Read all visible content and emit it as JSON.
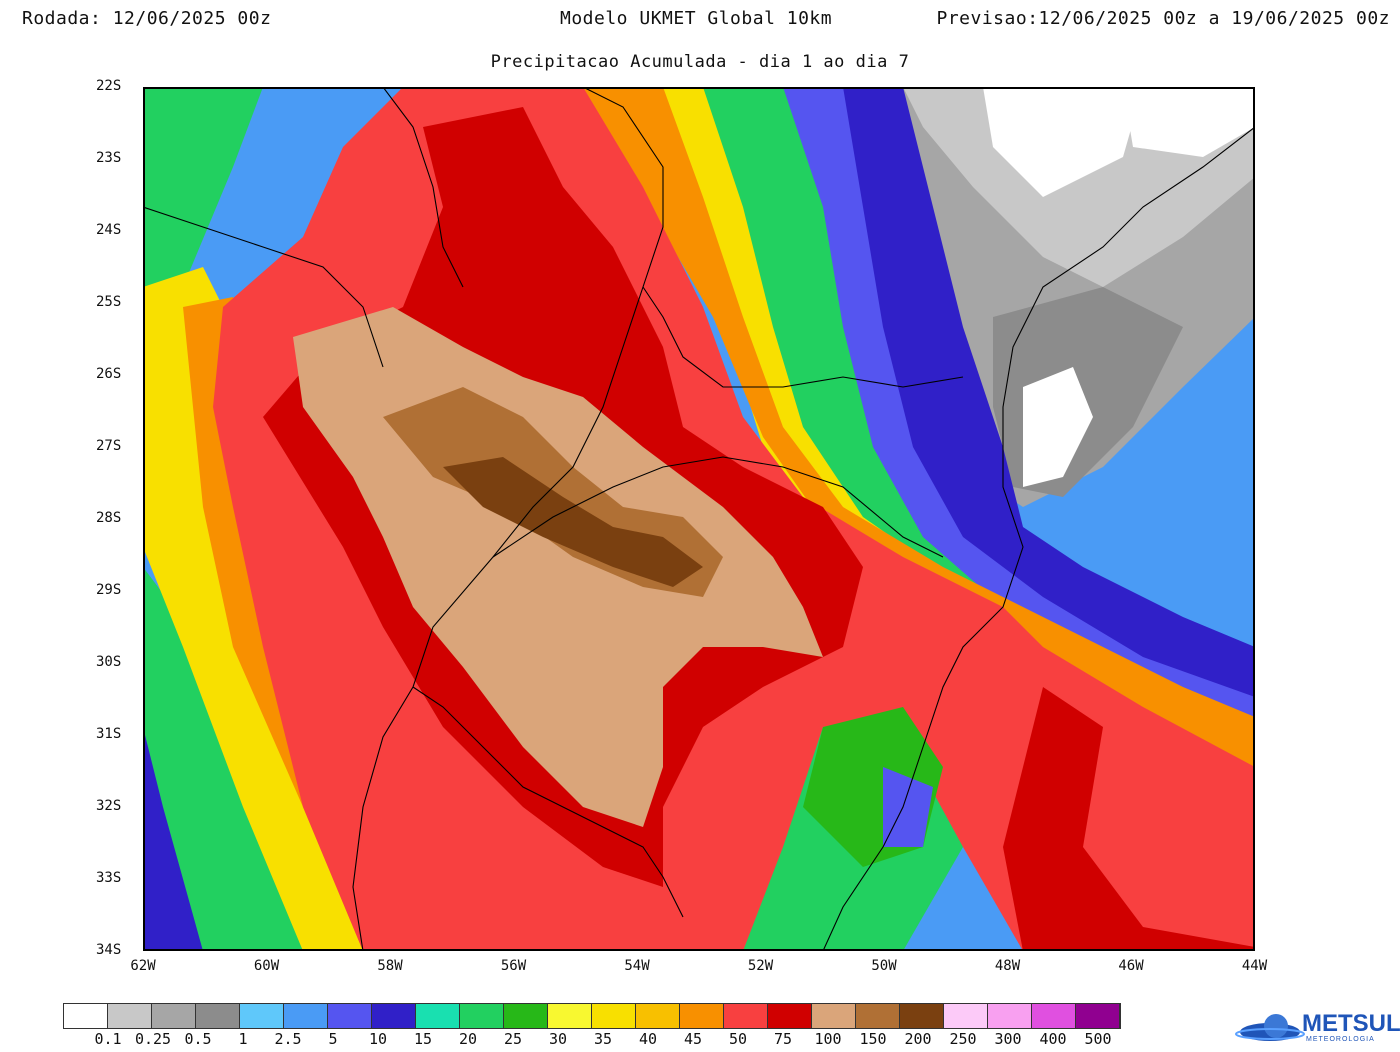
{
  "header": {
    "run_label": "Rodada:",
    "run_value": "12/06/2025 00z",
    "model": "Modelo UKMET Global 10km",
    "forecast_label": "Previsao:",
    "forecast_value": "12/06/2025 00z a 19/06/2025 00z"
  },
  "subtitle": "Precipitacao Acumulada - dia 1 ao dia 7",
  "axes": {
    "lat_labels": [
      "22S",
      "23S",
      "24S",
      "25S",
      "26S",
      "27S",
      "28S",
      "29S",
      "30S",
      "31S",
      "32S",
      "33S",
      "34S"
    ],
    "lon_labels": [
      "62W",
      "60W",
      "58W",
      "56W",
      "54W",
      "52W",
      "50W",
      "48W",
      "46W",
      "44W"
    ]
  },
  "legend": {
    "colors": [
      "#ffffff",
      "#c8c8c8",
      "#a6a6a6",
      "#8c8c8c",
      "#5fc8fa",
      "#4a9bf5",
      "#5555f0",
      "#3020c8",
      "#19e0b0",
      "#22d060",
      "#27b818",
      "#f8f830",
      "#f8e000",
      "#f8c000",
      "#f89000",
      "#f84040",
      "#d00000",
      "#daa57a",
      "#b07035",
      "#7a4010",
      "#fccaf8",
      "#f8a0f0",
      "#e050e0",
      "#900090"
    ],
    "labels": [
      "0.1",
      "0.25",
      "0.5",
      "1",
      "2.5",
      "5",
      "10",
      "15",
      "20",
      "25",
      "30",
      "35",
      "40",
      "45",
      "50",
      "75",
      "100",
      "150",
      "200",
      "250",
      "300",
      "400",
      "500"
    ]
  },
  "logo": {
    "name": "METSUL",
    "subtext": "METEOROLOGIA"
  }
}
